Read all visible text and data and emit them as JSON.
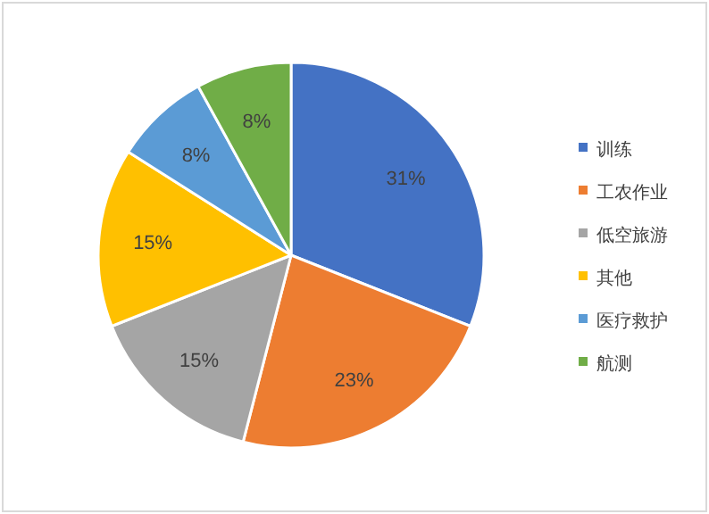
{
  "chart_data": {
    "type": "pie",
    "categories": [
      "训练",
      "工农作业",
      "低空旅游",
      "其他",
      "医疗救护",
      "航测"
    ],
    "values": [
      31,
      23,
      15,
      15,
      8,
      8
    ],
    "value_labels": [
      "31%",
      "23%",
      "15%",
      "15%",
      "8%",
      "8%"
    ],
    "colors": [
      "#4472c4",
      "#ed7d31",
      "#a5a5a5",
      "#ffc000",
      "#5b9bd5",
      "#70ad47"
    ],
    "legend": "right"
  }
}
